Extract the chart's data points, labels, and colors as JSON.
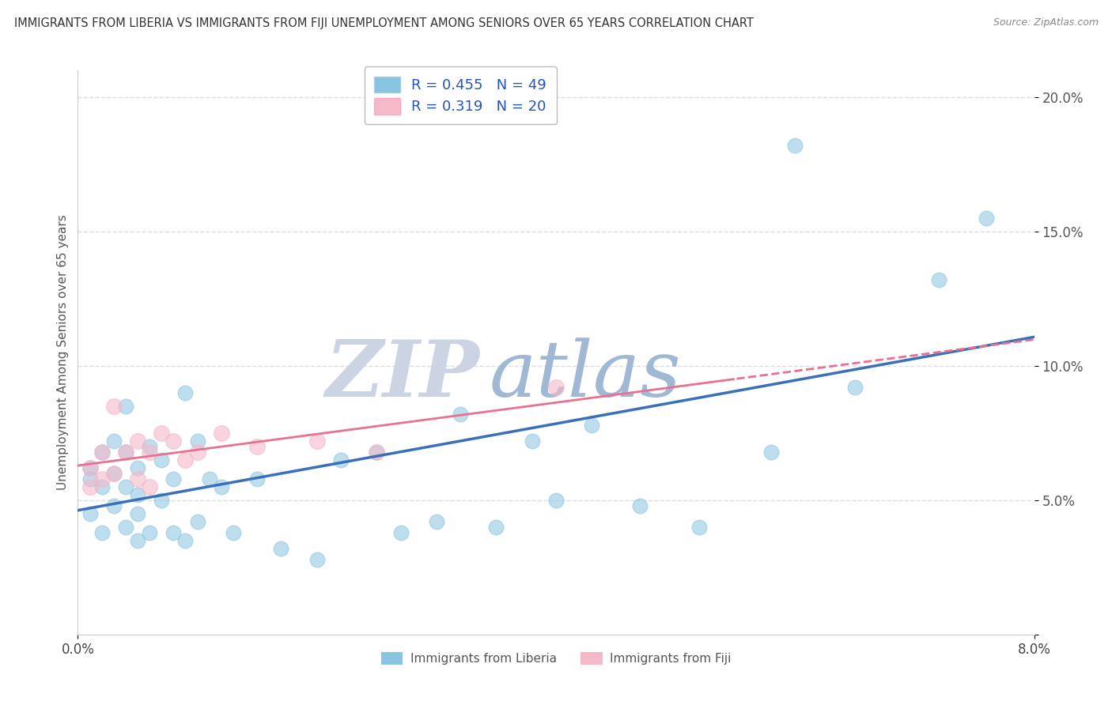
{
  "title": "IMMIGRANTS FROM LIBERIA VS IMMIGRANTS FROM FIJI UNEMPLOYMENT AMONG SENIORS OVER 65 YEARS CORRELATION CHART",
  "source": "Source: ZipAtlas.com",
  "ylabel": "Unemployment Among Seniors over 65 years",
  "xlim": [
    0.0,
    0.08
  ],
  "ylim": [
    0.0,
    0.21
  ],
  "yticks": [
    0.0,
    0.05,
    0.1,
    0.15,
    0.2
  ],
  "ytick_labels": [
    "",
    "5.0%",
    "10.0%",
    "15.0%",
    "20.0%"
  ],
  "liberia_R": 0.455,
  "liberia_N": 49,
  "fiji_R": 0.319,
  "fiji_N": 20,
  "liberia_color": "#89c4e0",
  "fiji_color": "#f4b8c8",
  "liberia_line_color": "#3a6fba",
  "fiji_line_color": "#e87090",
  "watermark_zip": "ZIP",
  "watermark_atlas": "atlas",
  "watermark_color_zip": "#c8d4e8",
  "watermark_color_atlas": "#9eb8d8",
  "legend_label_liberia": "Immigrants from Liberia",
  "legend_label_fiji": "Immigrants from Fiji",
  "liberia_x": [
    0.001,
    0.001,
    0.001,
    0.002,
    0.002,
    0.002,
    0.003,
    0.003,
    0.003,
    0.004,
    0.004,
    0.004,
    0.004,
    0.005,
    0.005,
    0.005,
    0.005,
    0.006,
    0.006,
    0.007,
    0.007,
    0.008,
    0.008,
    0.009,
    0.009,
    0.01,
    0.01,
    0.011,
    0.012,
    0.013,
    0.015,
    0.017,
    0.02,
    0.022,
    0.025,
    0.027,
    0.03,
    0.032,
    0.035,
    0.038,
    0.04,
    0.043,
    0.047,
    0.052,
    0.058,
    0.06,
    0.065,
    0.072,
    0.076
  ],
  "liberia_y": [
    0.062,
    0.058,
    0.045,
    0.068,
    0.055,
    0.038,
    0.072,
    0.06,
    0.048,
    0.085,
    0.068,
    0.055,
    0.04,
    0.062,
    0.052,
    0.045,
    0.035,
    0.07,
    0.038,
    0.065,
    0.05,
    0.058,
    0.038,
    0.09,
    0.035,
    0.072,
    0.042,
    0.058,
    0.055,
    0.038,
    0.058,
    0.032,
    0.028,
    0.065,
    0.068,
    0.038,
    0.042,
    0.082,
    0.04,
    0.072,
    0.05,
    0.078,
    0.048,
    0.04,
    0.068,
    0.182,
    0.092,
    0.132,
    0.155
  ],
  "fiji_x": [
    0.001,
    0.001,
    0.002,
    0.002,
    0.003,
    0.003,
    0.004,
    0.005,
    0.005,
    0.006,
    0.006,
    0.007,
    0.008,
    0.009,
    0.01,
    0.012,
    0.015,
    0.02,
    0.025,
    0.04
  ],
  "fiji_y": [
    0.062,
    0.055,
    0.068,
    0.058,
    0.085,
    0.06,
    0.068,
    0.072,
    0.058,
    0.068,
    0.055,
    0.075,
    0.072,
    0.065,
    0.068,
    0.075,
    0.07,
    0.072,
    0.068,
    0.092
  ],
  "background_color": "#ffffff",
  "grid_color": "#dddddd",
  "grid_style": "--"
}
